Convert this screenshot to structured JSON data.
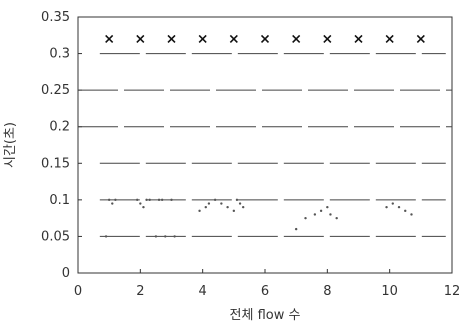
{
  "chart_data": {
    "type": "scatter",
    "title": "",
    "xlabel": "전체 flow 수",
    "ylabel": "시간(초)",
    "xlim": [
      0,
      12
    ],
    "ylim": [
      0,
      0.35
    ],
    "xticks": [
      "0",
      "2",
      "4",
      "6",
      "8",
      "10",
      "12"
    ],
    "yticks": [
      "0",
      "0.05",
      "0.1",
      "0.15",
      "0.2",
      "0.25",
      "0.3",
      "0.35"
    ],
    "grid": false,
    "colors": {
      "axis": "#333333",
      "points": "#555555",
      "markers": "#111111",
      "lines": "#444444"
    },
    "series": [
      {
        "marker": "x",
        "x": [
          1,
          2,
          3,
          4,
          5,
          6,
          7,
          8,
          9,
          10,
          11
        ],
        "y": [
          0.32,
          0.32,
          0.32,
          0.32,
          0.32,
          0.32,
          0.32,
          0.32,
          0.32,
          0.32,
          0.32
        ]
      },
      {
        "marker": "dot",
        "x": [
          0.9,
          1.0,
          1.1,
          1.2,
          1.9,
          2.0,
          2.1,
          2.2,
          2.3,
          2.5,
          2.6,
          2.7,
          2.8,
          3.0,
          3.1,
          3.9,
          4.1,
          4.2,
          4.4,
          4.6,
          4.8,
          5.0,
          5.1,
          5.2,
          5.3,
          7.0,
          7.3,
          7.6,
          7.8,
          8.0,
          8.1,
          8.3,
          9.9,
          10.1,
          10.3,
          10.5,
          10.7
        ],
        "y": [
          0.05,
          0.1,
          0.095,
          0.1,
          0.1,
          0.095,
          0.09,
          0.1,
          0.1,
          0.05,
          0.1,
          0.1,
          0.05,
          0.1,
          0.05,
          0.085,
          0.09,
          0.095,
          0.1,
          0.095,
          0.09,
          0.085,
          0.1,
          0.095,
          0.09,
          0.06,
          0.075,
          0.08,
          0.085,
          0.09,
          0.08,
          0.075,
          0.09,
          0.095,
          0.09,
          0.085,
          0.08
        ]
      }
    ],
    "lines": [
      {
        "y": 0.3,
        "x": [
          0.7,
          11.8
        ]
      },
      {
        "y": 0.25,
        "x": [
          0,
          12
        ]
      },
      {
        "y": 0.2,
        "x": [
          0,
          12
        ]
      },
      {
        "y": 0.15,
        "x": [
          0.7,
          11.8
        ]
      },
      {
        "y": 0.1,
        "x": [
          0.7,
          11.8
        ]
      },
      {
        "y": 0.05,
        "x": [
          0.7,
          11.8
        ]
      }
    ]
  }
}
